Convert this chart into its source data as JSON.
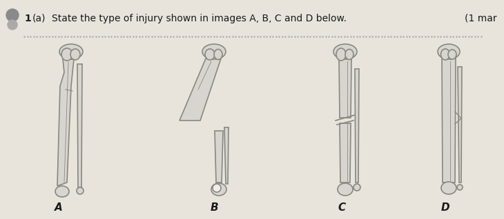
{
  "title_number": "1",
  "title_part": "(a)",
  "title_text": "State the type of injury shown in images A, B, C and D below.",
  "mark_text": "(1 mar",
  "dotted_line_y": 0.835,
  "background_color": "#e8e4dc",
  "paper_color": "#f0eeea",
  "text_color": "#1a1a1a",
  "labels": [
    "A",
    "B",
    "C",
    "D"
  ],
  "label_fontsize": 11
}
